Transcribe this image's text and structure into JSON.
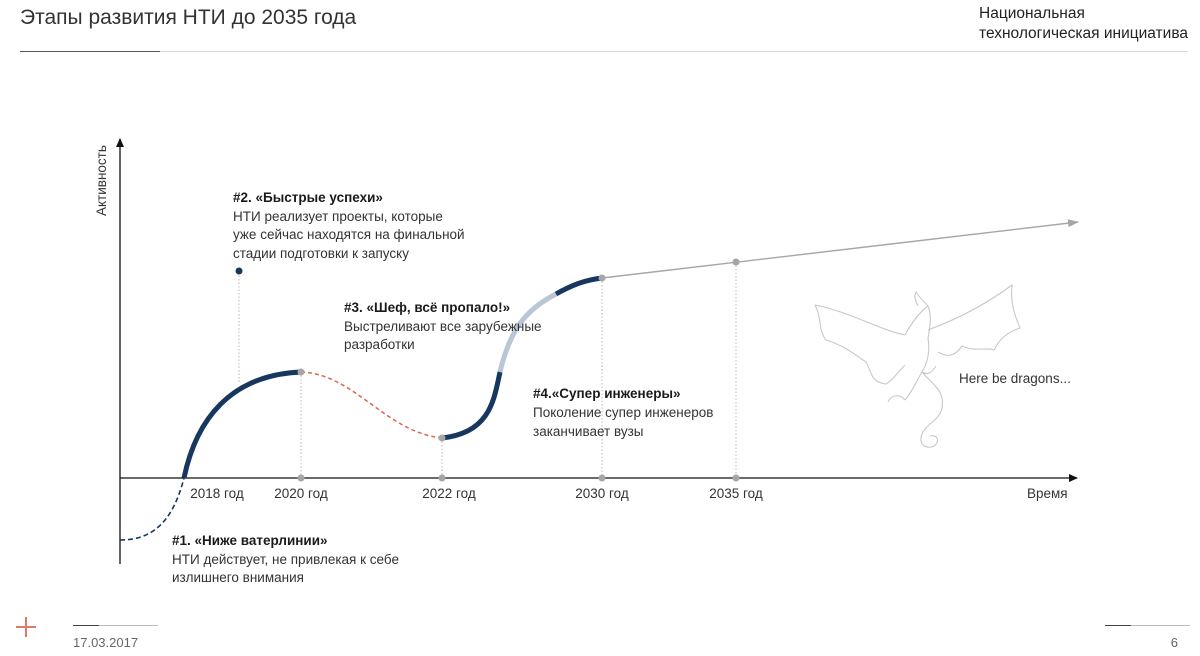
{
  "header": {
    "title": "Этапы развития НТИ до 2035 года",
    "brand_line1": "Национальная",
    "brand_line2": "технологическая инициатива"
  },
  "axes": {
    "y_label": "Активность",
    "x_label": "Время",
    "x_ticks": [
      "2018 год",
      "2020 год",
      "2022 год",
      "2030 год",
      "2035 год"
    ]
  },
  "stages": [
    {
      "title": "#1. «Ниже ватерлинии»",
      "lines": [
        "НТИ действует, не привлекая к себе",
        "излишнего внимания"
      ]
    },
    {
      "title": "#2. «Быстрые успехи»",
      "lines": [
        "НТИ реализует проекты, которые",
        "уже сейчас находятся на финальной",
        "стадии подготовки к запуску"
      ]
    },
    {
      "title": "#3. «Шеф, всё пропало!»",
      "lines": [
        "Выстреливают все зарубежные",
        "разработки"
      ]
    },
    {
      "title": "#4.«Супер инженеры»",
      "lines": [
        "Поколение супер инженеров",
        "заканчивает вузы"
      ]
    }
  ],
  "dragons_label": "Here be dragons...",
  "footer": {
    "date": "17.03.2017",
    "page": "6"
  },
  "colors": {
    "curve": "#17375e",
    "dashed_red": "#d9664f",
    "light_blue": "#b8c6d6",
    "gray": "#a6a6a6",
    "dragon": "#c8c8c8"
  }
}
